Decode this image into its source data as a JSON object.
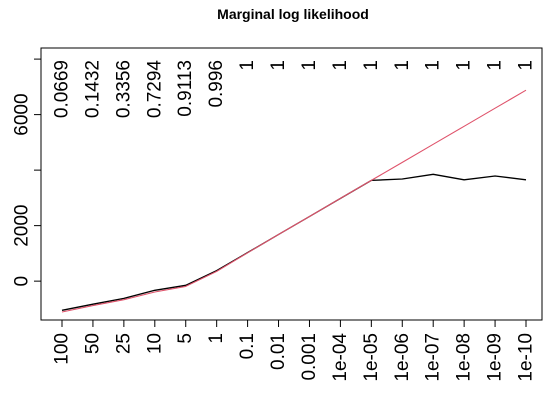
{
  "chart_data": {
    "type": "line",
    "title": "Marginal log likelihood",
    "xlabel": "",
    "ylabel": "",
    "categories": [
      "100",
      "50",
      "25",
      "10",
      "5",
      "1",
      "0.1",
      "0.01",
      "0.001",
      "1e-04",
      "1e-05",
      "1e-06",
      "1e-07",
      "1e-08",
      "1e-09",
      "1e-10"
    ],
    "top_labels": [
      "0.0669",
      "0.1432",
      "0.3356",
      "0.7294",
      "0.9113",
      "0.996",
      "1",
      "1",
      "1",
      "1",
      "1",
      "1",
      "1",
      "1",
      "1",
      "1"
    ],
    "y_ticks": [
      0,
      2000,
      4000,
      6000
    ],
    "y_tick_labels": [
      "0",
      "2000",
      "",
      "6000"
    ],
    "ylim": [
      -1400,
      8400
    ],
    "grid": false,
    "series": [
      {
        "color": "#000000",
        "values": [
          -1050,
          -830,
          -620,
          -330,
          -150,
          380,
          1030,
          1680,
          2330,
          2980,
          3630,
          3680,
          3850,
          3650,
          3790,
          3650
        ]
      },
      {
        "color": "#DF536B",
        "values": [
          -1110,
          -880,
          -670,
          -390,
          -190,
          350,
          1020,
          1680,
          2330,
          2980,
          3630,
          4280,
          4930,
          5580,
          6230,
          6880
        ]
      }
    ]
  }
}
